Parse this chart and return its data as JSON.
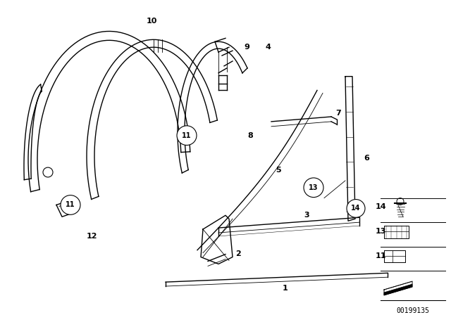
{
  "bg_color": "#ffffff",
  "line_color": "#000000",
  "part_number": "00199135",
  "lw_main": 1.0,
  "lw_thin": 0.6,
  "lw_thick": 1.5,
  "font_size_label": 8,
  "font_size_pn": 7
}
